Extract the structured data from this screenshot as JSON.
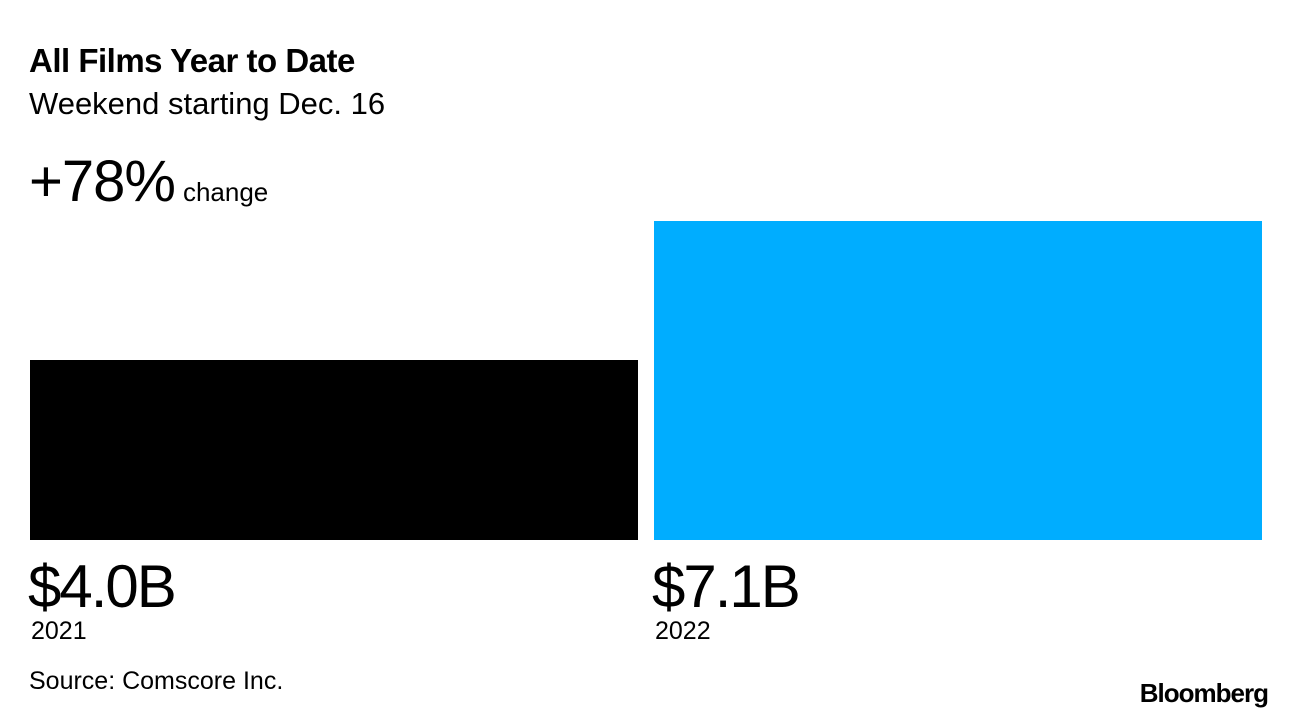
{
  "chart_data": {
    "type": "bar",
    "title": "All Films Year to Date",
    "subtitle": "Weekend starting Dec. 16",
    "change_value": "+78%",
    "change_label": "change",
    "categories": [
      "2021",
      "2022"
    ],
    "values": [
      4.0,
      7.1
    ],
    "value_labels": [
      "$4.0B",
      "$7.1B"
    ],
    "unit": "USD billions",
    "colors": [
      "#000000",
      "#00ADFF"
    ],
    "grid": false
  },
  "source": "Source: Comscore Inc.",
  "logo": "Bloomberg"
}
